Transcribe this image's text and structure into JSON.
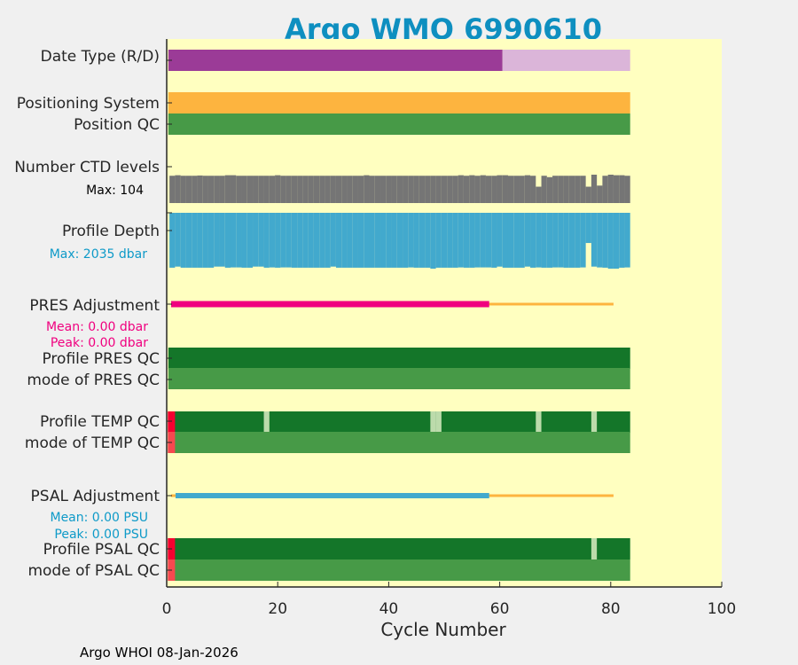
{
  "chart_data": {
    "type": "table",
    "title": "Argo WMO 6990610",
    "xlabel": "Cycle Number",
    "xlim": [
      0,
      100
    ],
    "xticks": [
      "0",
      "20",
      "40",
      "60",
      "80",
      "100"
    ],
    "n_cycles": 83,
    "footer": "Argo WHOI 08-Jan-2026",
    "colors": {
      "title": "#0e8fc0",
      "plot_bg": "#ffffc0",
      "delayed": "#9b3b97",
      "realtime": "#dbb5d9",
      "positioning": "#fdb43f",
      "qc_good": "#147629",
      "qc_mode_good": "#479a47",
      "qc_bad": "#f50030",
      "qc_mode_bad": "#f74850",
      "qc_probably": "#bcdbab",
      "ctd": "#757575",
      "depth": "#42a9cd",
      "pres_adj": "#f0007f",
      "psal_adj": "#42a9cd",
      "adj_rt": "#fdb43f"
    },
    "rows": {
      "date_type": {
        "label": "Date Type (R/D)",
        "delayed_cycles": [
          1,
          60
        ],
        "realtime_cycles": [
          61,
          83
        ]
      },
      "positioning_system": {
        "label": "Positioning System"
      },
      "position_qc": {
        "label": "Position QC"
      },
      "ctd_levels": {
        "label": "Number CTD levels",
        "max_label": "Max: 104",
        "max": 104,
        "values": [
          100,
          102,
          100,
          100,
          100,
          101,
          100,
          100,
          100,
          100,
          102,
          102,
          100,
          100,
          100,
          100,
          100,
          100,
          100,
          102,
          100,
          100,
          100,
          100,
          100,
          100,
          100,
          100,
          100,
          100,
          100,
          100,
          100,
          100,
          100,
          102,
          100,
          100,
          100,
          100,
          100,
          100,
          100,
          100,
          100,
          100,
          100,
          100,
          100,
          100,
          100,
          100,
          102,
          100,
          102,
          100,
          102,
          100,
          100,
          102,
          102,
          100,
          100,
          100,
          102,
          100,
          60,
          100,
          95,
          100,
          100,
          100,
          100,
          100,
          100,
          60,
          104,
          64,
          100,
          104,
          102,
          102,
          100
        ]
      },
      "profile_depth": {
        "label": "Profile Depth",
        "max_label": "Max: 2035 dbar",
        "max": 2035,
        "values": [
          2000,
          1960,
          2000,
          2000,
          2000,
          2000,
          2000,
          2000,
          1960,
          1960,
          2000,
          1990,
          1990,
          2000,
          2000,
          1960,
          1960,
          2000,
          1990,
          2000,
          1990,
          1990,
          2000,
          2000,
          2000,
          2000,
          2000,
          2000,
          2000,
          1960,
          2000,
          2000,
          2000,
          2000,
          2000,
          2000,
          2000,
          2000,
          2000,
          2000,
          2000,
          2000,
          2000,
          1990,
          2000,
          2000,
          2000,
          2035,
          2000,
          2000,
          2000,
          2000,
          1990,
          2000,
          2000,
          1990,
          1990,
          1990,
          2000,
          1960,
          2000,
          2000,
          2000,
          2000,
          1960,
          2000,
          1990,
          2000,
          2000,
          1990,
          1990,
          2000,
          2000,
          2000,
          1990,
          1100,
          1960,
          1990,
          2000,
          2035,
          2035,
          2000,
          1990
        ]
      },
      "pres_adjustment": {
        "label": "PRES Adjustment",
        "mean_label": "Mean: 0.00 dbar",
        "peak_label": "Peak: 0.00 dbar",
        "adjusted_cycles": [
          1,
          58
        ],
        "realtime_end": 80.5
      },
      "profile_pres_qc": {
        "label": "Profile PRES QC"
      },
      "mode_pres_qc": {
        "label": "mode of PRES QC"
      },
      "profile_temp_qc": {
        "label": "Profile TEMP QC",
        "bad_cycles": [
          1
        ],
        "probably_good_cycles": [
          18,
          48,
          49,
          67,
          77
        ]
      },
      "mode_temp_qc": {
        "label": "mode of TEMP QC",
        "bad_cycles": [
          1
        ]
      },
      "psal_adjustment": {
        "label": "PSAL Adjustment",
        "mean_label": "Mean: 0.00 PSU",
        "peak_label": "Peak: 0.00 PSU",
        "adjusted_cycles": [
          2,
          58
        ],
        "realtime_end": 80.5
      },
      "profile_psal_qc": {
        "label": "Profile PSAL QC",
        "bad_cycles": [
          1
        ],
        "probably_good_cycles": [
          77
        ]
      },
      "mode_psal_qc": {
        "label": "mode of PSAL QC",
        "bad_cycles": [
          1
        ]
      }
    }
  }
}
